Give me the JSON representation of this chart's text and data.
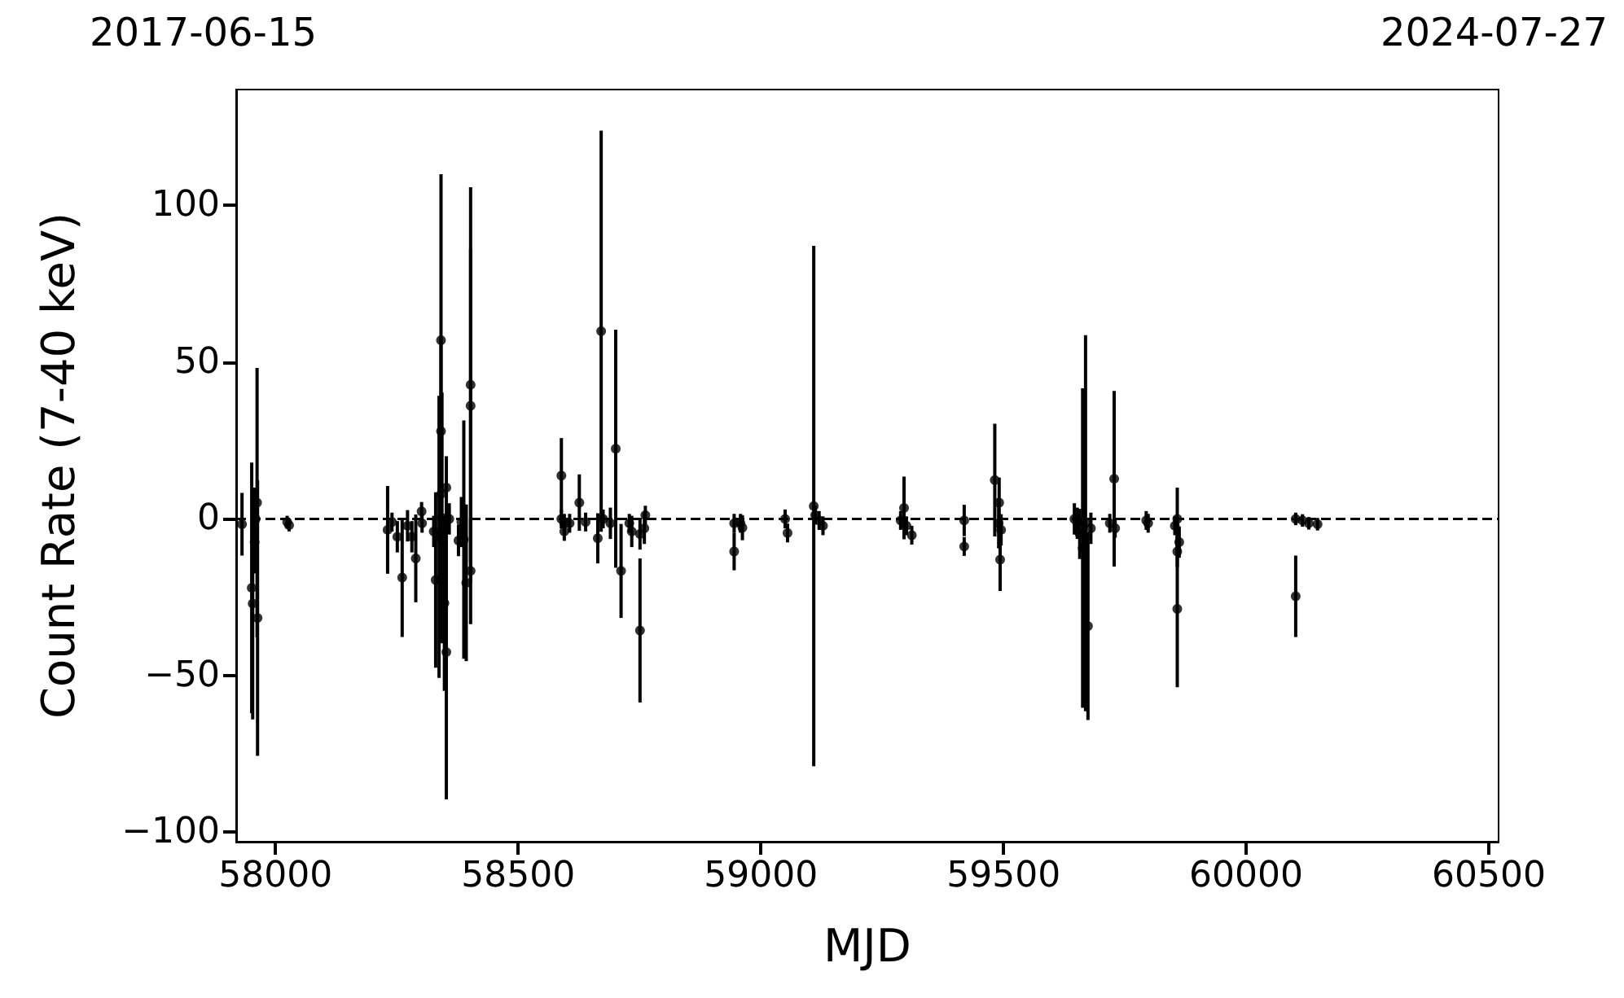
{
  "chart_data": {
    "type": "scatter",
    "annotations": [
      "2017-06-15",
      "2024-07-27"
    ],
    "xlabel": "MJD",
    "ylabel": "Count Rate (7-40 keV)",
    "xlim": [
      57919,
      60520
    ],
    "xticks": [
      58000,
      58500,
      59000,
      59500,
      60000,
      60500
    ],
    "ylim": [
      -103,
      137
    ],
    "yticks": [
      -100,
      -50,
      0,
      50,
      100
    ],
    "grid": false,
    "legend": false,
    "marker": "circle",
    "ref_lines": [
      {
        "axis": "y",
        "value": 0,
        "line_style": "dashed",
        "color": "#000000"
      }
    ],
    "series": [
      {
        "color": "#000000",
        "x": [
          57931,
          57951,
          57953,
          57957,
          57959,
          57962,
          57963,
          58024,
          58028,
          58231,
          58240,
          58251,
          58261,
          58272,
          58281,
          58289,
          58301,
          58302,
          58326,
          58330,
          58337,
          58341,
          58341,
          58342,
          58343,
          58348,
          58352,
          58352,
          58358,
          58377,
          58383,
          58388,
          58393,
          58402,
          58402,
          58402,
          58589,
          58589,
          58595,
          58595,
          58606,
          58626,
          58639,
          58664,
          58671,
          58675,
          58690,
          58701,
          58712,
          58729,
          58734,
          58751,
          58751,
          58760,
          58762,
          58945,
          58945,
          58958,
          58962,
          59050,
          59055,
          59109,
          59112,
          59120,
          59128,
          59288,
          59295,
          59300,
          59311,
          59419,
          59419,
          59482,
          59490,
          59491,
          59493,
          59495,
          59646,
          59652,
          59657,
          59663,
          59669,
          59674,
          59680,
          59719,
          59728,
          59730,
          59794,
          59798,
          59853,
          59858,
          59858,
          59862,
          59858,
          60102,
          60102,
          60116,
          60129,
          60147
        ],
        "values": [
          -1.7,
          -22,
          -27,
          -7.4,
          0,
          5.2,
          -31.6,
          -1,
          -2,
          -3.5,
          -1,
          -5.7,
          -18.7,
          -2.2,
          -5.7,
          -12.6,
          2.4,
          -1.4,
          -4,
          -19.5,
          -5.7,
          57,
          28,
          8.1,
          0.3,
          -26.9,
          -42.5,
          10,
          0,
          -6.9,
          -1,
          -6.6,
          -20.4,
          -16.6,
          42.8,
          36.1,
          13.8,
          0,
          -1.4,
          -4,
          -1.4,
          5.2,
          -1,
          -6.2,
          59.9,
          0,
          -1.4,
          22.4,
          -16.6,
          -1.4,
          -4,
          -35.6,
          -4.8,
          -3,
          1.2,
          -1.4,
          -10.4,
          -1.4,
          -2.8,
          0,
          -4.5,
          4.1,
          1.2,
          -0.5,
          -2.2,
          -0.5,
          3.5,
          -2.2,
          -5.2,
          -0.5,
          -8.8,
          12.4,
          -1.4,
          5.2,
          -13,
          -3.5,
          0,
          -1.4,
          -4.8,
          -9.3,
          -1.4,
          -34.2,
          -3,
          -1.4,
          12.8,
          -3,
          -0.5,
          -1.4,
          -2.2,
          0,
          -10.4,
          -7.4,
          -28.7,
          -24.7,
          0,
          -0.5,
          -1.4,
          -1.7
        ],
        "errors": [
          10,
          40,
          37,
          10,
          10,
          43,
          44,
          2,
          2,
          14,
          3,
          5,
          19,
          5,
          5,
          14,
          3,
          3,
          5,
          28,
          45,
          53,
          30,
          20,
          40,
          28,
          47,
          10,
          5,
          5,
          8,
          38,
          25,
          17,
          63,
          50,
          12,
          3,
          3,
          3,
          3,
          9,
          3,
          8,
          64,
          3,
          5,
          38,
          15,
          3,
          5,
          23,
          5,
          5,
          3,
          3,
          6,
          3,
          4,
          3,
          3,
          83,
          3,
          3,
          3,
          3,
          10,
          3,
          3,
          5,
          3,
          18,
          8,
          8,
          10,
          5,
          5,
          5,
          8,
          51,
          60,
          30,
          5,
          3,
          28,
          3,
          3,
          3,
          3,
          10,
          5,
          5,
          25,
          13,
          2,
          2,
          2,
          2
        ]
      }
    ]
  }
}
